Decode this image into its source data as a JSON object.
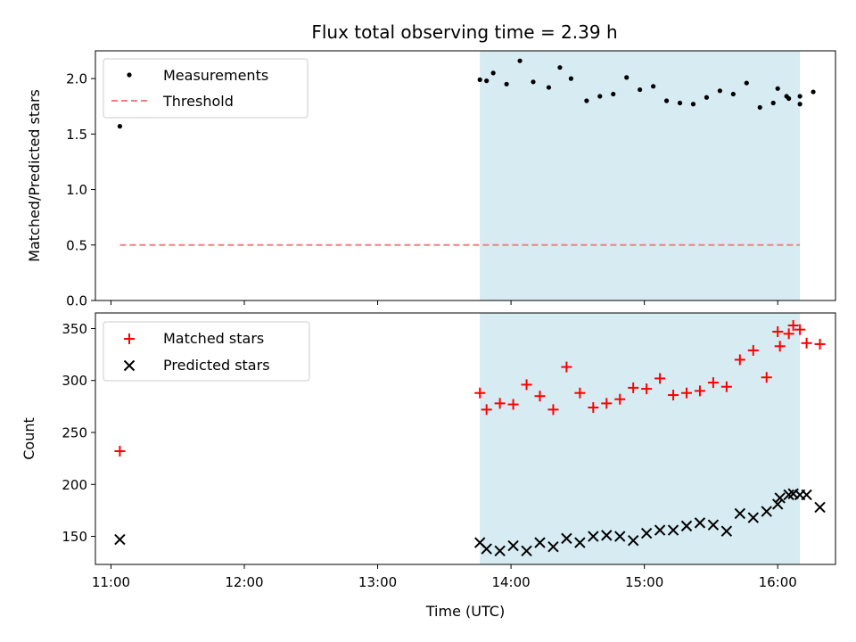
{
  "figure": {
    "title": "Flux total observing time = 2.39 h",
    "xlabel": "Time (UTC)",
    "x_ticks": [
      "11:00",
      "12:00",
      "13:00",
      "14:00",
      "15:00",
      "16:00"
    ]
  },
  "chart_data": [
    {
      "type": "scatter",
      "panel": "top",
      "ylabel": "Matched/Predicted stars",
      "xlim": [
        "10:53",
        "16:26"
      ],
      "ylim": [
        0,
        2.25
      ],
      "y_ticks": [
        "0.0",
        "0.5",
        "1.0",
        "1.5",
        "2.0"
      ],
      "shaded_span": {
        "x_start": "13:46",
        "x_end": "16:10",
        "color": "#add8e6"
      },
      "legend": {
        "placement": "top-left",
        "entries": [
          "Measurements",
          "Threshold"
        ]
      },
      "series": [
        {
          "name": "Measurements",
          "marker": "dot",
          "color": "#000000",
          "points": [
            [
              "11:04",
              1.57
            ],
            [
              "13:46",
              1.99
            ],
            [
              "13:49",
              1.98
            ],
            [
              "13:52",
              2.05
            ],
            [
              "13:58",
              1.95
            ],
            [
              "14:04",
              2.16
            ],
            [
              "14:10",
              1.97
            ],
            [
              "14:17",
              1.92
            ],
            [
              "14:22",
              2.1
            ],
            [
              "14:27",
              2.0
            ],
            [
              "14:34",
              1.8
            ],
            [
              "14:40",
              1.84
            ],
            [
              "14:46",
              1.86
            ],
            [
              "14:52",
              2.01
            ],
            [
              "14:58",
              1.9
            ],
            [
              "15:04",
              1.93
            ],
            [
              "15:10",
              1.8
            ],
            [
              "15:16",
              1.78
            ],
            [
              "15:22",
              1.77
            ],
            [
              "15:28",
              1.83
            ],
            [
              "15:34",
              1.89
            ],
            [
              "15:40",
              1.86
            ],
            [
              "15:46",
              1.96
            ],
            [
              "15:52",
              1.74
            ],
            [
              "15:58",
              1.78
            ],
            [
              "16:04",
              1.84
            ],
            [
              "16:10",
              1.77
            ],
            [
              "16:16",
              1.88
            ],
            [
              "16:00",
              1.91
            ],
            [
              "16:05",
              1.82
            ],
            [
              "16:10",
              1.84
            ]
          ]
        },
        {
          "name": "Threshold",
          "style": "dashed-line",
          "color": "#f08080",
          "points": [
            [
              "11:04",
              0.5
            ],
            [
              "16:10",
              0.5
            ]
          ]
        }
      ]
    },
    {
      "type": "scatter",
      "panel": "bottom",
      "ylabel": "Count",
      "xlim": [
        "10:53",
        "16:26"
      ],
      "ylim": [
        123,
        365
      ],
      "y_ticks": [
        "150",
        "200",
        "250",
        "300",
        "350"
      ],
      "shaded_span": {
        "x_start": "13:46",
        "x_end": "16:10",
        "color": "#add8e6"
      },
      "legend": {
        "placement": "top-left",
        "entries": [
          "Matched stars",
          "Predicted stars"
        ]
      },
      "series": [
        {
          "name": "Matched stars",
          "marker": "plus",
          "color": "#ff0000",
          "points": [
            [
              "11:04",
              232
            ],
            [
              "13:46",
              288
            ],
            [
              "13:49",
              272
            ],
            [
              "13:55",
              278
            ],
            [
              "14:01",
              277
            ],
            [
              "14:07",
              296
            ],
            [
              "14:13",
              285
            ],
            [
              "14:19",
              272
            ],
            [
              "14:25",
              313
            ],
            [
              "14:31",
              288
            ],
            [
              "14:37",
              274
            ],
            [
              "14:43",
              278
            ],
            [
              "14:49",
              282
            ],
            [
              "14:55",
              293
            ],
            [
              "15:01",
              292
            ],
            [
              "15:07",
              302
            ],
            [
              "15:13",
              286
            ],
            [
              "15:19",
              288
            ],
            [
              "15:25",
              290
            ],
            [
              "15:31",
              298
            ],
            [
              "15:37",
              294
            ],
            [
              "15:43",
              320
            ],
            [
              "15:49",
              329
            ],
            [
              "15:55",
              303
            ],
            [
              "16:01",
              333
            ],
            [
              "16:07",
              353
            ],
            [
              "16:13",
              336
            ],
            [
              "16:19",
              335
            ],
            [
              "16:00",
              347
            ],
            [
              "16:05",
              345
            ],
            [
              "16:10",
              349
            ]
          ]
        },
        {
          "name": "Predicted stars",
          "marker": "x",
          "color": "#000000",
          "points": [
            [
              "11:04",
              147
            ],
            [
              "13:46",
              144
            ],
            [
              "13:49",
              138
            ],
            [
              "13:55",
              136
            ],
            [
              "14:01",
              141
            ],
            [
              "14:07",
              136
            ],
            [
              "14:13",
              144
            ],
            [
              "14:19",
              140
            ],
            [
              "14:25",
              148
            ],
            [
              "14:31",
              144
            ],
            [
              "14:37",
              150
            ],
            [
              "14:43",
              151
            ],
            [
              "14:49",
              150
            ],
            [
              "14:55",
              146
            ],
            [
              "15:01",
              153
            ],
            [
              "15:07",
              156
            ],
            [
              "15:13",
              156
            ],
            [
              "15:19",
              160
            ],
            [
              "15:25",
              163
            ],
            [
              "15:31",
              161
            ],
            [
              "15:37",
              155
            ],
            [
              "15:43",
              172
            ],
            [
              "15:49",
              168
            ],
            [
              "15:55",
              174
            ],
            [
              "16:01",
              187
            ],
            [
              "16:07",
              191
            ],
            [
              "16:13",
              190
            ],
            [
              "16:19",
              178
            ],
            [
              "16:00",
              181
            ],
            [
              "16:05",
              190
            ],
            [
              "16:10",
              190
            ]
          ]
        }
      ]
    }
  ]
}
